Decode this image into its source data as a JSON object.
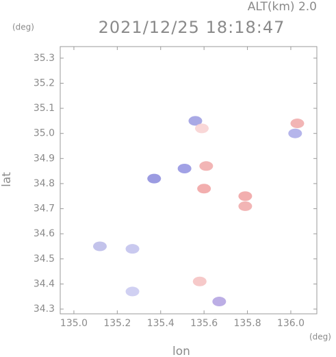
{
  "chart_data": {
    "type": "scatter",
    "title": "2021/12/25 18:18:47",
    "subtitle": "ALT(km) 2.0",
    "x_label": "lon",
    "y_label": "lat",
    "x_unit": "(deg)",
    "y_unit": "(deg)",
    "x": [
      135.27,
      135.12,
      135.27,
      135.56,
      135.37,
      135.51,
      136.02,
      136.03,
      135.58,
      135.79,
      135.79,
      135.6,
      135.61,
      135.59,
      135.67
    ],
    "values": [
      34.37,
      34.55,
      34.54,
      35.05,
      34.82,
      34.86,
      35.0,
      35.04,
      34.41,
      34.75,
      34.71,
      34.78,
      34.87,
      35.02,
      34.33
    ],
    "point_colors": [
      "#c8c8f0",
      "#b8b8e8",
      "#c0c0ec",
      "#9a9ae0",
      "#8a8adc",
      "#9090e0",
      "#a8a8e8",
      "#f0a8a8",
      "#f4c0c0",
      "#f0a0a0",
      "#f0a8a8",
      "#f0a0a0",
      "#f0a8a8",
      "#f8d0d0",
      "#b0a0e0"
    ],
    "xlim": [
      134.937,
      136.12
    ],
    "ylim": [
      34.281,
      35.346
    ],
    "xticks": [
      {
        "value": 135,
        "label": "135.0"
      },
      135.2,
      135.4,
      135.6,
      135.8,
      {
        "value": 136,
        "label": "136.0"
      }
    ],
    "yticks": [
      35.3,
      35.2,
      35.1,
      {
        "value": 35,
        "label": "35.0"
      },
      34.9,
      34.8,
      34.7,
      34.6,
      34.5,
      34.4,
      34.3
    ]
  }
}
